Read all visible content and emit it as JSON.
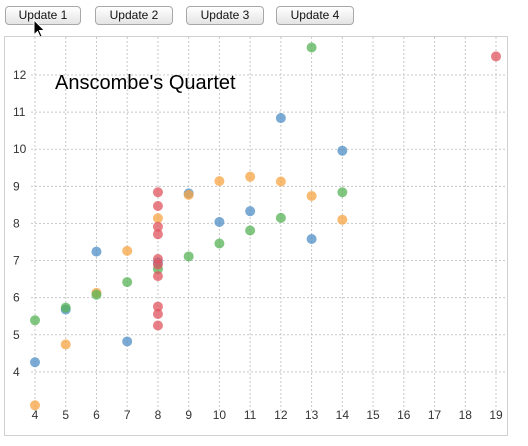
{
  "toolbar": {
    "buttons": [
      "Update 1",
      "Update 2",
      "Update 3",
      "Update 4"
    ]
  },
  "chart_data": {
    "type": "scatter",
    "title": "Anscombe's Quartet",
    "xlabel": "",
    "ylabel": "",
    "xlim": [
      4,
      19
    ],
    "ylim": [
      3,
      12.7
    ],
    "x_ticks": [
      4,
      5,
      6,
      7,
      8,
      9,
      10,
      11,
      12,
      13,
      14,
      15,
      16,
      17,
      18,
      19
    ],
    "y_ticks": [
      4,
      5,
      6,
      7,
      8,
      9,
      10,
      11,
      12
    ],
    "grid": true,
    "series": [
      {
        "color": "#4f8fc5",
        "points": [
          [
            10,
            8.04
          ],
          [
            8,
            6.95
          ],
          [
            13,
            7.58
          ],
          [
            9,
            8.81
          ],
          [
            11,
            8.33
          ],
          [
            14,
            9.96
          ],
          [
            6,
            7.24
          ],
          [
            4,
            4.26
          ],
          [
            12,
            10.84
          ],
          [
            7,
            4.82
          ],
          [
            5,
            5.68
          ]
        ]
      },
      {
        "color": "#f7a443",
        "points": [
          [
            10,
            9.14
          ],
          [
            8,
            8.14
          ],
          [
            13,
            8.74
          ],
          [
            9,
            8.77
          ],
          [
            11,
            9.26
          ],
          [
            14,
            8.1
          ],
          [
            6,
            6.13
          ],
          [
            4,
            3.1
          ],
          [
            12,
            9.13
          ],
          [
            7,
            7.26
          ],
          [
            5,
            4.74
          ]
        ]
      },
      {
        "color": "#57b356",
        "points": [
          [
            10,
            7.46
          ],
          [
            8,
            6.77
          ],
          [
            13,
            12.74
          ],
          [
            9,
            7.11
          ],
          [
            11,
            7.81
          ],
          [
            14,
            8.84
          ],
          [
            6,
            6.08
          ],
          [
            4,
            5.39
          ],
          [
            12,
            8.15
          ],
          [
            7,
            6.42
          ],
          [
            5,
            5.73
          ]
        ]
      },
      {
        "color": "#e0545e",
        "points": [
          [
            8,
            6.58
          ],
          [
            8,
            5.76
          ],
          [
            8,
            7.71
          ],
          [
            8,
            8.84
          ],
          [
            8,
            8.47
          ],
          [
            8,
            7.04
          ],
          [
            8,
            5.25
          ],
          [
            19,
            12.5
          ],
          [
            8,
            5.56
          ],
          [
            8,
            7.91
          ],
          [
            8,
            6.89
          ]
        ]
      }
    ]
  }
}
